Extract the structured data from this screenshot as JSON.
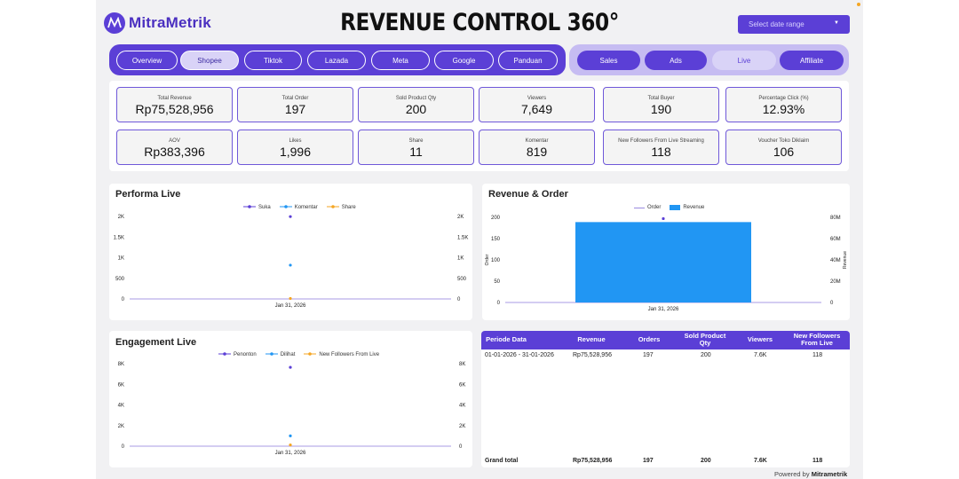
{
  "header": {
    "logo_text": "MitraMetrik",
    "title": "REVENUE CONTROL 360°",
    "date_select_placeholder": "Select date range"
  },
  "nav": {
    "platform_tabs": [
      "Overview",
      "Shopee",
      "Tiktok",
      "Lazada",
      "Meta",
      "Google",
      "Panduan"
    ],
    "active_platform": "Shopee",
    "section_tabs": [
      "Sales",
      "Ads",
      "Live",
      "Affiliate"
    ],
    "active_section": "Live"
  },
  "kpis": [
    {
      "label": "Total Revenue",
      "value": "Rp75,528,956"
    },
    {
      "label": "Total Order",
      "value": "197"
    },
    {
      "label": "Sold Product Qty",
      "value": "200"
    },
    {
      "label": "Viewers",
      "value": "7,649"
    },
    {
      "label": "Total Buyer",
      "value": "190"
    },
    {
      "label": "Percentage Click (%)",
      "value": "12.93%"
    },
    {
      "label": "AOV",
      "value": "Rp383,396"
    },
    {
      "label": "Likes",
      "value": "1,996"
    },
    {
      "label": "Share",
      "value": "11"
    },
    {
      "label": "Komentar",
      "value": "819"
    },
    {
      "label": "New Followers From Live Streaming",
      "value": "118"
    },
    {
      "label": "Voucher Toko Diklaim",
      "value": "106"
    }
  ],
  "colors": {
    "accent": "#5b3fd6",
    "blue": "#2196f3",
    "orange": "#f5a623"
  },
  "chart_data": [
    {
      "type": "scatter",
      "title": "Performa Live",
      "x": [
        "Jan 31, 2026"
      ],
      "series": [
        {
          "name": "Suka",
          "values": [
            1996
          ]
        },
        {
          "name": "Komentar",
          "values": [
            819
          ]
        },
        {
          "name": "Share",
          "values": [
            11
          ]
        }
      ],
      "ylim": [
        0,
        2000
      ],
      "yticks": [
        "2K",
        "1.5K",
        "1K",
        "500",
        "0"
      ],
      "legend": "top-center"
    },
    {
      "type": "bar",
      "title": "Revenue & Order",
      "x": [
        "Jan 31, 2026"
      ],
      "series": [
        {
          "name": "Order",
          "values": [
            197
          ]
        },
        {
          "name": "Revenue",
          "values": [
            75528956
          ]
        }
      ],
      "ylabel": "Order",
      "y2label": "Revenue",
      "ylim": [
        0,
        200
      ],
      "y2lim": [
        0,
        80000000
      ],
      "yticks": [
        "200",
        "150",
        "100",
        "50",
        "0"
      ],
      "y2ticks": [
        "80M",
        "60M",
        "40M",
        "20M",
        "0"
      ],
      "legend": "top-center"
    },
    {
      "type": "scatter",
      "title": "Engagement Live",
      "x": [
        "Jan 31, 2026"
      ],
      "series": [
        {
          "name": "Penonton",
          "values": [
            7649
          ]
        },
        {
          "name": "Dilihat",
          "values": [
            1000
          ]
        },
        {
          "name": "New Followers From Live",
          "values": [
            118
          ]
        }
      ],
      "ylim": [
        0,
        8000
      ],
      "yticks": [
        "8K",
        "6K",
        "4K",
        "2K",
        "0"
      ],
      "legend": "top-center"
    }
  ],
  "table": {
    "headers": [
      "Periode Data",
      "Revenue",
      "Orders",
      "Sold Product Qty",
      "Viewers",
      "New Followers From Live"
    ],
    "rows": [
      [
        "01-01-2026 - 31-01-2026",
        "Rp75,528,956",
        "197",
        "200",
        "7.6K",
        "118"
      ]
    ],
    "total": [
      "Grand total",
      "Rp75,528,956",
      "197",
      "200",
      "7.6K",
      "118"
    ]
  },
  "footer": {
    "powered_prefix": "Powered by",
    "powered_brand": "Mitrametrik"
  }
}
